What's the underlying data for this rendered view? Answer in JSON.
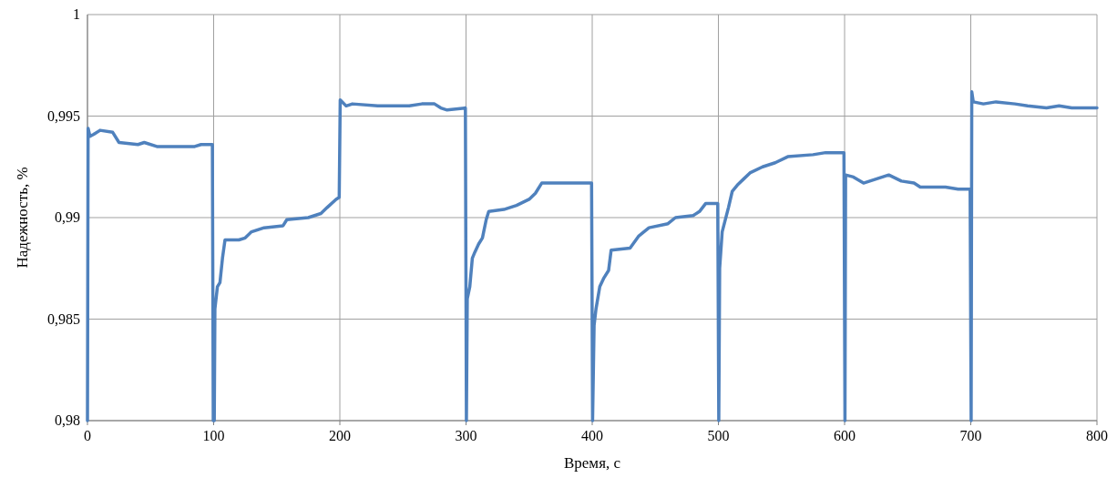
{
  "chart_data": {
    "type": "line",
    "xlabel": "Время, с",
    "ylabel": "Надежность, %",
    "xlim": [
      0,
      800
    ],
    "xticks": [
      0,
      100,
      200,
      300,
      400,
      500,
      600,
      700,
      800
    ],
    "ylim": [
      0.98,
      1
    ],
    "yticks": [
      {
        "value": 0.98,
        "label": "0,98"
      },
      {
        "value": 0.985,
        "label": "0,985"
      },
      {
        "value": 0.99,
        "label": "0,99"
      },
      {
        "value": 0.995,
        "label": "0,995"
      },
      {
        "value": 1,
        "label": "1"
      }
    ],
    "grid": true,
    "marker": "none",
    "line_style": "solid",
    "series": [
      {
        "color": "#4f81bd",
        "x": [
          0,
          0.5,
          2,
          5,
          10,
          20,
          25,
          40,
          45,
          55,
          85,
          90,
          99,
          99.7,
          100.5,
          101,
          103,
          105,
          107,
          109,
          120,
          125,
          130,
          140,
          155,
          158,
          175,
          185,
          190,
          197,
          199.5,
          200.3,
          205,
          210,
          230,
          255,
          265,
          275,
          280,
          285,
          299.5,
          300.3,
          301,
          303,
          305,
          307,
          310,
          313,
          316,
          318,
          330,
          340,
          350,
          355,
          360,
          399.5,
          400.3,
          401.5,
          403,
          406,
          409,
          413,
          415,
          430,
          437,
          445,
          460,
          466,
          480,
          485,
          490,
          499.5,
          500.3,
          501,
          503,
          508,
          511,
          515,
          520,
          525,
          535,
          545,
          555,
          575,
          585,
          599.5,
          600.3,
          600.8,
          607,
          615,
          625,
          635,
          645,
          655,
          660,
          680,
          690,
          699.5,
          700.3,
          700.8,
          702,
          710,
          720,
          735,
          745,
          760,
          770,
          780,
          800
        ],
        "values": [
          0.98,
          0.9944,
          0.994,
          0.9941,
          0.9943,
          0.9942,
          0.9937,
          0.9936,
          0.9937,
          0.9935,
          0.9935,
          0.9936,
          0.9936,
          0.98,
          0.98,
          0.9855,
          0.9866,
          0.9868,
          0.988,
          0.9889,
          0.9889,
          0.989,
          0.9893,
          0.9895,
          0.9896,
          0.9899,
          0.99,
          0.9902,
          0.9905,
          0.9909,
          0.991,
          0.9958,
          0.9955,
          0.9956,
          0.9955,
          0.9955,
          0.9956,
          0.9956,
          0.9954,
          0.9953,
          0.9954,
          0.98,
          0.986,
          0.9866,
          0.988,
          0.9883,
          0.9887,
          0.989,
          0.9899,
          0.9903,
          0.9904,
          0.9906,
          0.9909,
          0.9912,
          0.9917,
          0.9917,
          0.98,
          0.9847,
          0.9855,
          0.9866,
          0.987,
          0.9874,
          0.9884,
          0.9885,
          0.9891,
          0.9895,
          0.9897,
          0.99,
          0.9901,
          0.9903,
          0.9907,
          0.9907,
          0.98,
          0.9875,
          0.9893,
          0.9905,
          0.9913,
          0.9916,
          0.9919,
          0.9922,
          0.9925,
          0.9927,
          0.993,
          0.9931,
          0.9932,
          0.9932,
          0.98,
          0.9921,
          0.992,
          0.9917,
          0.9919,
          0.9921,
          0.9918,
          0.9917,
          0.9915,
          0.9915,
          0.9914,
          0.9914,
          0.98,
          0.9962,
          0.9957,
          0.9956,
          0.9957,
          0.9956,
          0.9955,
          0.9954,
          0.9955,
          0.9954,
          0.9954
        ]
      }
    ]
  }
}
